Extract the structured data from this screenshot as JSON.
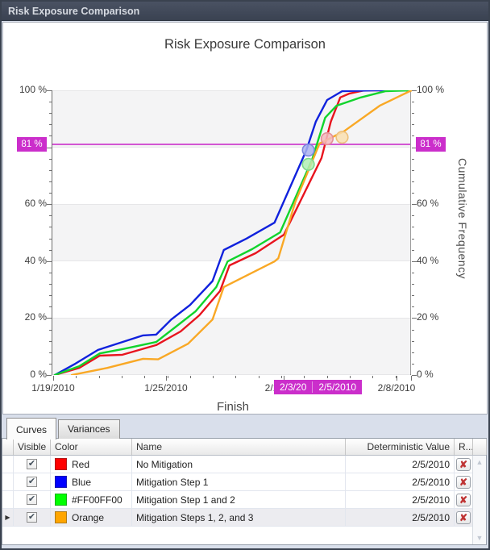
{
  "window": {
    "title": "Risk Exposure Comparison"
  },
  "chart_data": {
    "type": "line",
    "title": "Risk Exposure Comparison",
    "xlabel": "Finish",
    "ylabel_right": "Cumulative Frequency",
    "ylim": [
      0,
      100
    ],
    "x_unit": "days after 1/19/2010",
    "x_tick_labels": [
      "1/19/2010",
      "1/25/2010",
      "2/1/2010",
      "2/8/2010"
    ],
    "y_ticks": [
      {
        "pct": 100,
        "label": "100 %"
      },
      {
        "pct": 60,
        "label": "60 %"
      },
      {
        "pct": 40,
        "label": "40 %"
      },
      {
        "pct": 20,
        "label": "20 %"
      },
      {
        "pct": 0,
        "label": "0 %"
      }
    ],
    "reference_line": {
      "value": 81,
      "label": "81 %",
      "color": "#cb2ecb"
    },
    "x_highlight": {
      "labels": [
        "2/3/20",
        "2/5/2010"
      ],
      "dates": [
        "2/3/2010",
        "2/5/2010"
      ],
      "color": "#cb2ecb"
    },
    "series": [
      {
        "name": "Red",
        "label": "No Mitigation",
        "color": "#e8141e",
        "points": [
          [
            0,
            0
          ],
          [
            1.3,
            2.5
          ],
          [
            2.4,
            6.8
          ],
          [
            3.6,
            7.1
          ],
          [
            5.4,
            10.5
          ],
          [
            6.7,
            15.3
          ],
          [
            7.7,
            21
          ],
          [
            8.8,
            29.5
          ],
          [
            9.3,
            38.5
          ],
          [
            10.7,
            42.8
          ],
          [
            12.2,
            49.3
          ],
          [
            14.2,
            76.2
          ],
          [
            14.7,
            89
          ],
          [
            15.2,
            97.5
          ],
          [
            15.7,
            98.9
          ],
          [
            16.5,
            100
          ],
          [
            19,
            100
          ]
        ]
      },
      {
        "name": "Blue",
        "label": "Mitigation Step 1",
        "color": "#1021dd",
        "points": [
          [
            0,
            0
          ],
          [
            1.1,
            4
          ],
          [
            2.3,
            8.8
          ],
          [
            3.6,
            11.6
          ],
          [
            4.7,
            13.9
          ],
          [
            5.4,
            14.2
          ],
          [
            6.2,
            19.5
          ],
          [
            7.2,
            24.6
          ],
          [
            8.4,
            33
          ],
          [
            9,
            43.9
          ],
          [
            10.2,
            47.9
          ],
          [
            11.7,
            53.5
          ],
          [
            13.4,
            79
          ],
          [
            13.9,
            89
          ],
          [
            14.5,
            96.6
          ],
          [
            15.3,
            99.7
          ],
          [
            17,
            100
          ],
          [
            19,
            100
          ]
        ]
      },
      {
        "name": "#FF00FF00",
        "label": "Mitigation Step 1 and 2",
        "color": "#10d42c",
        "points": [
          [
            0,
            0
          ],
          [
            1.3,
            3.1
          ],
          [
            2.4,
            7.6
          ],
          [
            3.6,
            9.1
          ],
          [
            5.4,
            11.6
          ],
          [
            6.4,
            16.7
          ],
          [
            7.5,
            22.4
          ],
          [
            8.6,
            30.9
          ],
          [
            9.2,
            39.9
          ],
          [
            10.5,
            44.2
          ],
          [
            12,
            50.1
          ],
          [
            13.7,
            75.6
          ],
          [
            14.4,
            90.4
          ],
          [
            15,
            94.6
          ],
          [
            16.3,
            97.5
          ],
          [
            17.6,
            99.7
          ],
          [
            19,
            100
          ]
        ]
      },
      {
        "name": "Orange",
        "label": "Mitigation Steps 1, 2, and 3",
        "color": "#f9a825",
        "points": [
          [
            0.9,
            0
          ],
          [
            2.8,
            2.5
          ],
          [
            4.7,
            5.7
          ],
          [
            5.5,
            5.5
          ],
          [
            7.1,
            11
          ],
          [
            8.4,
            19.5
          ],
          [
            9,
            30.9
          ],
          [
            11.7,
            39.9
          ],
          [
            11.9,
            41
          ],
          [
            12.8,
            60.6
          ],
          [
            14.1,
            81.3
          ],
          [
            15.4,
            85.6
          ],
          [
            17.3,
            94.6
          ],
          [
            19,
            100
          ]
        ]
      }
    ],
    "markers": [
      {
        "series": "Blue",
        "day": 13.5,
        "pct": 79,
        "fill": "#aab2f0",
        "stroke": "#7d88de"
      },
      {
        "series": "#FF00FF00",
        "day": 13.5,
        "pct": 74,
        "fill": "#b2efb4",
        "stroke": "#7fd98a"
      },
      {
        "series": "Red",
        "day": 14.5,
        "pct": 83,
        "fill": "#f4babe",
        "stroke": "#e39096"
      },
      {
        "series": "Orange",
        "day": 15.3,
        "pct": 83.5,
        "fill": "#f9dfb2",
        "stroke": "#edc07c"
      }
    ]
  },
  "tabs": [
    {
      "label": "Curves",
      "active": true
    },
    {
      "label": "Variances",
      "active": false
    }
  ],
  "table": {
    "columns": [
      "",
      "Visible",
      "Color",
      "Name",
      "Deterministic Value",
      "R...",
      ""
    ],
    "rows": [
      {
        "visible": true,
        "color": "#FF0000",
        "color_name": "Red",
        "name": "No Mitigation",
        "deterministic_value": "2/5/2010",
        "selected": false
      },
      {
        "visible": true,
        "color": "#0000FF",
        "color_name": "Blue",
        "name": "Mitigation Step 1",
        "deterministic_value": "2/5/2010",
        "selected": false
      },
      {
        "visible": true,
        "color": "#00FF00",
        "color_name": "#FF00FF00",
        "name": "Mitigation Step 1 and 2",
        "deterministic_value": "2/5/2010",
        "selected": false
      },
      {
        "visible": true,
        "color": "#FFA500",
        "color_name": "Orange",
        "name": "Mitigation Steps 1, 2, and 3",
        "deterministic_value": "2/5/2010",
        "selected": true
      }
    ]
  },
  "icons": {
    "delete": "delete-x-icon",
    "check": "checkmark-icon",
    "row_pointer": "current-row-arrow-icon",
    "scroll_up": "scroll-up-arrow-icon",
    "scroll_down": "scroll-down-arrow-icon"
  }
}
